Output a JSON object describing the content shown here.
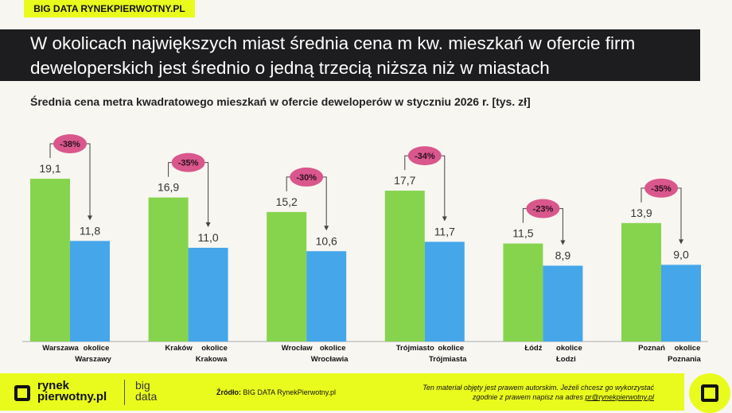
{
  "tag": "BIG DATA RYNEKPIERWOTNY.PL",
  "title": "W okolicach największych miast średnia cena m kw. mieszkań w ofercie firm deweloperskich jest średnio o jedną trzecią niższa niż w miastach",
  "chart_data": {
    "type": "bar",
    "title": "Średnia cena metra kwadratowego mieszkań w ofercie deweloperów w styczniu 2026 r. [tys. zł]",
    "groups": [
      {
        "city": "Warszawa",
        "suburb": "okolice Warszawy",
        "city_value": 19.1,
        "suburb_value": 11.8,
        "city_label": "19,1",
        "suburb_label": "11,8",
        "diff": "-38%"
      },
      {
        "city": "Kraków",
        "suburb": "okolice Krakowa",
        "city_value": 16.9,
        "suburb_value": 11.0,
        "city_label": "16,9",
        "suburb_label": "11,0",
        "diff": "-35%"
      },
      {
        "city": "Wrocław",
        "suburb": "okolice Wrocławia",
        "city_value": 15.2,
        "suburb_value": 10.6,
        "city_label": "15,2",
        "suburb_label": "10,6",
        "diff": "-30%"
      },
      {
        "city": "Trójmiasto",
        "suburb": "okolice Trójmiasta",
        "city_value": 17.7,
        "suburb_value": 11.7,
        "city_label": "17,7",
        "suburb_label": "11,7",
        "diff": "-34%"
      },
      {
        "city": "Łódź",
        "suburb": "okolice Łodzi",
        "city_value": 11.5,
        "suburb_value": 8.9,
        "city_label": "11,5",
        "suburb_label": "8,9",
        "diff": "-23%"
      },
      {
        "city": "Poznań",
        "suburb": "okolice Poznania",
        "city_value": 13.9,
        "suburb_value": 9.0,
        "city_label": "13,9",
        "suburb_label": "9,0",
        "diff": "-35%"
      }
    ],
    "colors": {
      "city": "#86d44d",
      "suburb": "#45a6ea",
      "badge": "#d9578c"
    },
    "ylim": [
      0,
      20
    ],
    "grid": false,
    "legend": "none"
  },
  "footer": {
    "logo_line1": "rynek",
    "logo_line2": "pierwotny.pl",
    "big": "big",
    "data": "data",
    "source_label": "Źródło:",
    "source": "BIG DATA RynekPierwotny.pl",
    "copyright1": "Ten materiał objęty jest prawem autorskim. Jeżeli chcesz go wykorzystać",
    "copyright2": "zgodnie z prawem napisz na adres ",
    "email": "pr@rynekpierwotny.pl"
  }
}
